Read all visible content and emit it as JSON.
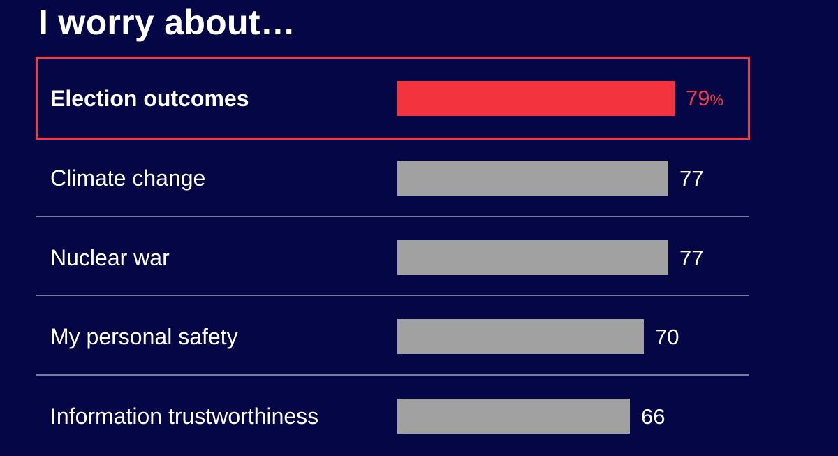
{
  "chart_data": {
    "type": "bar",
    "orientation": "horizontal",
    "title": "I worry about…",
    "categories": [
      "Election outcomes",
      "Climate change",
      "Nuclear war",
      "My personal safety",
      "Information trustworthiness"
    ],
    "values": [
      79,
      77,
      77,
      70,
      66
    ],
    "value_labels": [
      "79",
      "77",
      "77",
      "70",
      "66"
    ],
    "value_suffix_first": "%",
    "highlight_index": 0,
    "xlim": [
      0,
      100
    ],
    "grid": false,
    "colors": {
      "background": "#050646",
      "bar": "#a1a1a1",
      "highlight": "#f3333d",
      "highlight_border": "#f23a45",
      "text": "#ffffff"
    }
  }
}
